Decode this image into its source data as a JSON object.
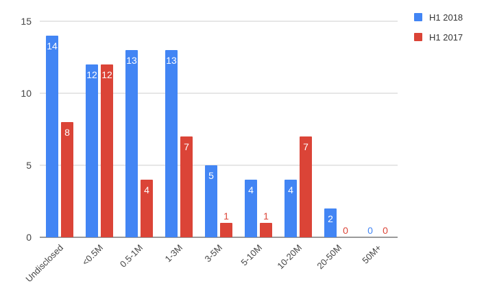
{
  "chart_data": {
    "type": "bar",
    "categories": [
      "Undisclosed",
      "<0.5M",
      "0.5-1M",
      "1-3M",
      "3-5M",
      "5-10M",
      "10-20M",
      "20-50M",
      "50M+"
    ],
    "series": [
      {
        "name": "H1 2018",
        "color": "#4285f4",
        "values": [
          14,
          12,
          13,
          13,
          5,
          4,
          4,
          2,
          0
        ]
      },
      {
        "name": "H1 2017",
        "color": "#db4437",
        "values": [
          8,
          12,
          4,
          7,
          1,
          1,
          7,
          0,
          0
        ]
      }
    ],
    "yticks": [
      0,
      5,
      10,
      15
    ],
    "ylim": [
      0,
      15
    ],
    "grid": true,
    "legend_position": "top-right",
    "gridline_color": "#cccccc",
    "axis_color": "#333333"
  }
}
